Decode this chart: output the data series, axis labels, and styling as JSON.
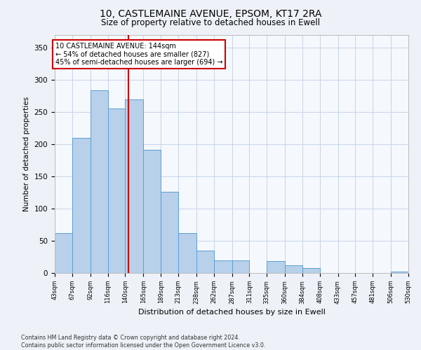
{
  "title": "10, CASTLEMAINE AVENUE, EPSOM, KT17 2RA",
  "subtitle": "Size of property relative to detached houses in Ewell",
  "xlabel": "Distribution of detached houses by size in Ewell",
  "ylabel": "Number of detached properties",
  "bin_edges": [
    43,
    67,
    92,
    116,
    140,
    165,
    189,
    213,
    238,
    262,
    287,
    311,
    335,
    360,
    384,
    408,
    433,
    457,
    481,
    506,
    530
  ],
  "bar_heights": [
    62,
    210,
    284,
    256,
    270,
    192,
    126,
    62,
    35,
    20,
    20,
    0,
    18,
    12,
    8,
    0,
    0,
    0,
    0,
    2
  ],
  "bar_color": "#b8d0ea",
  "bar_edge_color": "#5a9fd4",
  "vline_x": 144,
  "vline_color": "#cc0000",
  "annotation_text": "10 CASTLEMAINE AVENUE: 144sqm\n← 54% of detached houses are smaller (827)\n45% of semi-detached houses are larger (694) →",
  "annotation_box_color": "white",
  "annotation_box_edge_color": "#cc0000",
  "yticks": [
    0,
    50,
    100,
    150,
    200,
    250,
    300,
    350
  ],
  "ylim": [
    0,
    370
  ],
  "footer": "Contains HM Land Registry data © Crown copyright and database right 2024.\nContains public sector information licensed under the Open Government Licence v3.0.",
  "background_color": "#eef2f8",
  "plot_background_color": "#f5f8fd",
  "grid_color": "#c8d4e8"
}
